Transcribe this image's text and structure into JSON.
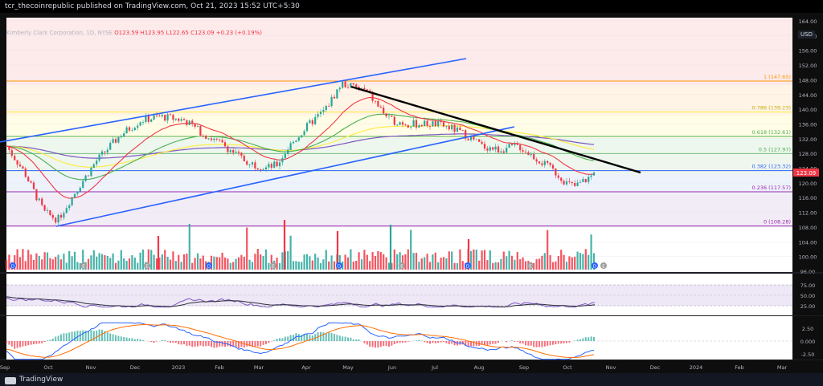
{
  "header": {
    "publisher": "tcr_thecoinrepublic published on TradingView.com, Oct 21, 2023 15:52 UTC+5:30"
  },
  "symbol": {
    "name": "Kimberly Clark Corporation, 1D, NYSE",
    "ohlc": "O123.59  H123.95  L122.65  C123.09  +0.23 (+0.19%)",
    "currency": "USD",
    "last_price": "123.09"
  },
  "price_axis": [
    "164.00",
    "160.00",
    "156.00",
    "152.00",
    "148.00",
    "144.00",
    "140.00",
    "136.00",
    "132.00",
    "128.00",
    "124.00",
    "120.00",
    "116.00",
    "112.00",
    "108.00",
    "104.00",
    "100.00",
    "96.00"
  ],
  "fib_levels": [
    {
      "label": "1 (147.65)",
      "value": 147.65,
      "color": "#ff9800"
    },
    {
      "label": "0.786 (139.23)",
      "value": 139.23,
      "color": "#ffeb3b"
    },
    {
      "label": "0.618 (132.61)",
      "value": 132.61,
      "color": "#4caf50"
    },
    {
      "label": "0.5 (127.97)",
      "value": 127.97,
      "color": "#4caf50"
    },
    {
      "label": "0.382 (123.32)",
      "value": 123.32,
      "color": "#2962ff"
    },
    {
      "label": "0.236 (117.57)",
      "value": 117.57,
      "color": "#9c27b0"
    },
    {
      "label": "0 (108.28)",
      "value": 108.28,
      "color": "#9c27b0"
    }
  ],
  "rsi_axis": [
    "75.00",
    "50.00",
    "25.00"
  ],
  "macd_axis": [
    "2.50",
    "0.000",
    "-2.50"
  ],
  "time_axis": [
    "Sep",
    "Oct",
    "Nov",
    "Dec",
    "2023",
    "Feb",
    "Mar",
    "Apr",
    "May",
    "Jun",
    "Jul",
    "Aug",
    "Sep",
    "Oct",
    "Nov",
    "Dec",
    "2024",
    "Feb",
    "Mar"
  ],
  "event_markers": [
    "D",
    "E",
    "E",
    "D",
    "E",
    "D",
    "E",
    "D",
    "E",
    "D",
    "E"
  ],
  "footer": {
    "brand": "TradingView"
  },
  "colors": {
    "up": "#26a69a",
    "down": "#f23645",
    "ema20": "#f23645",
    "ema50": "#4caf50",
    "ema100": "#ffeb3b",
    "ema200": "#7e57c2",
    "channel": "#2962ff",
    "trend": "#000000"
  }
}
